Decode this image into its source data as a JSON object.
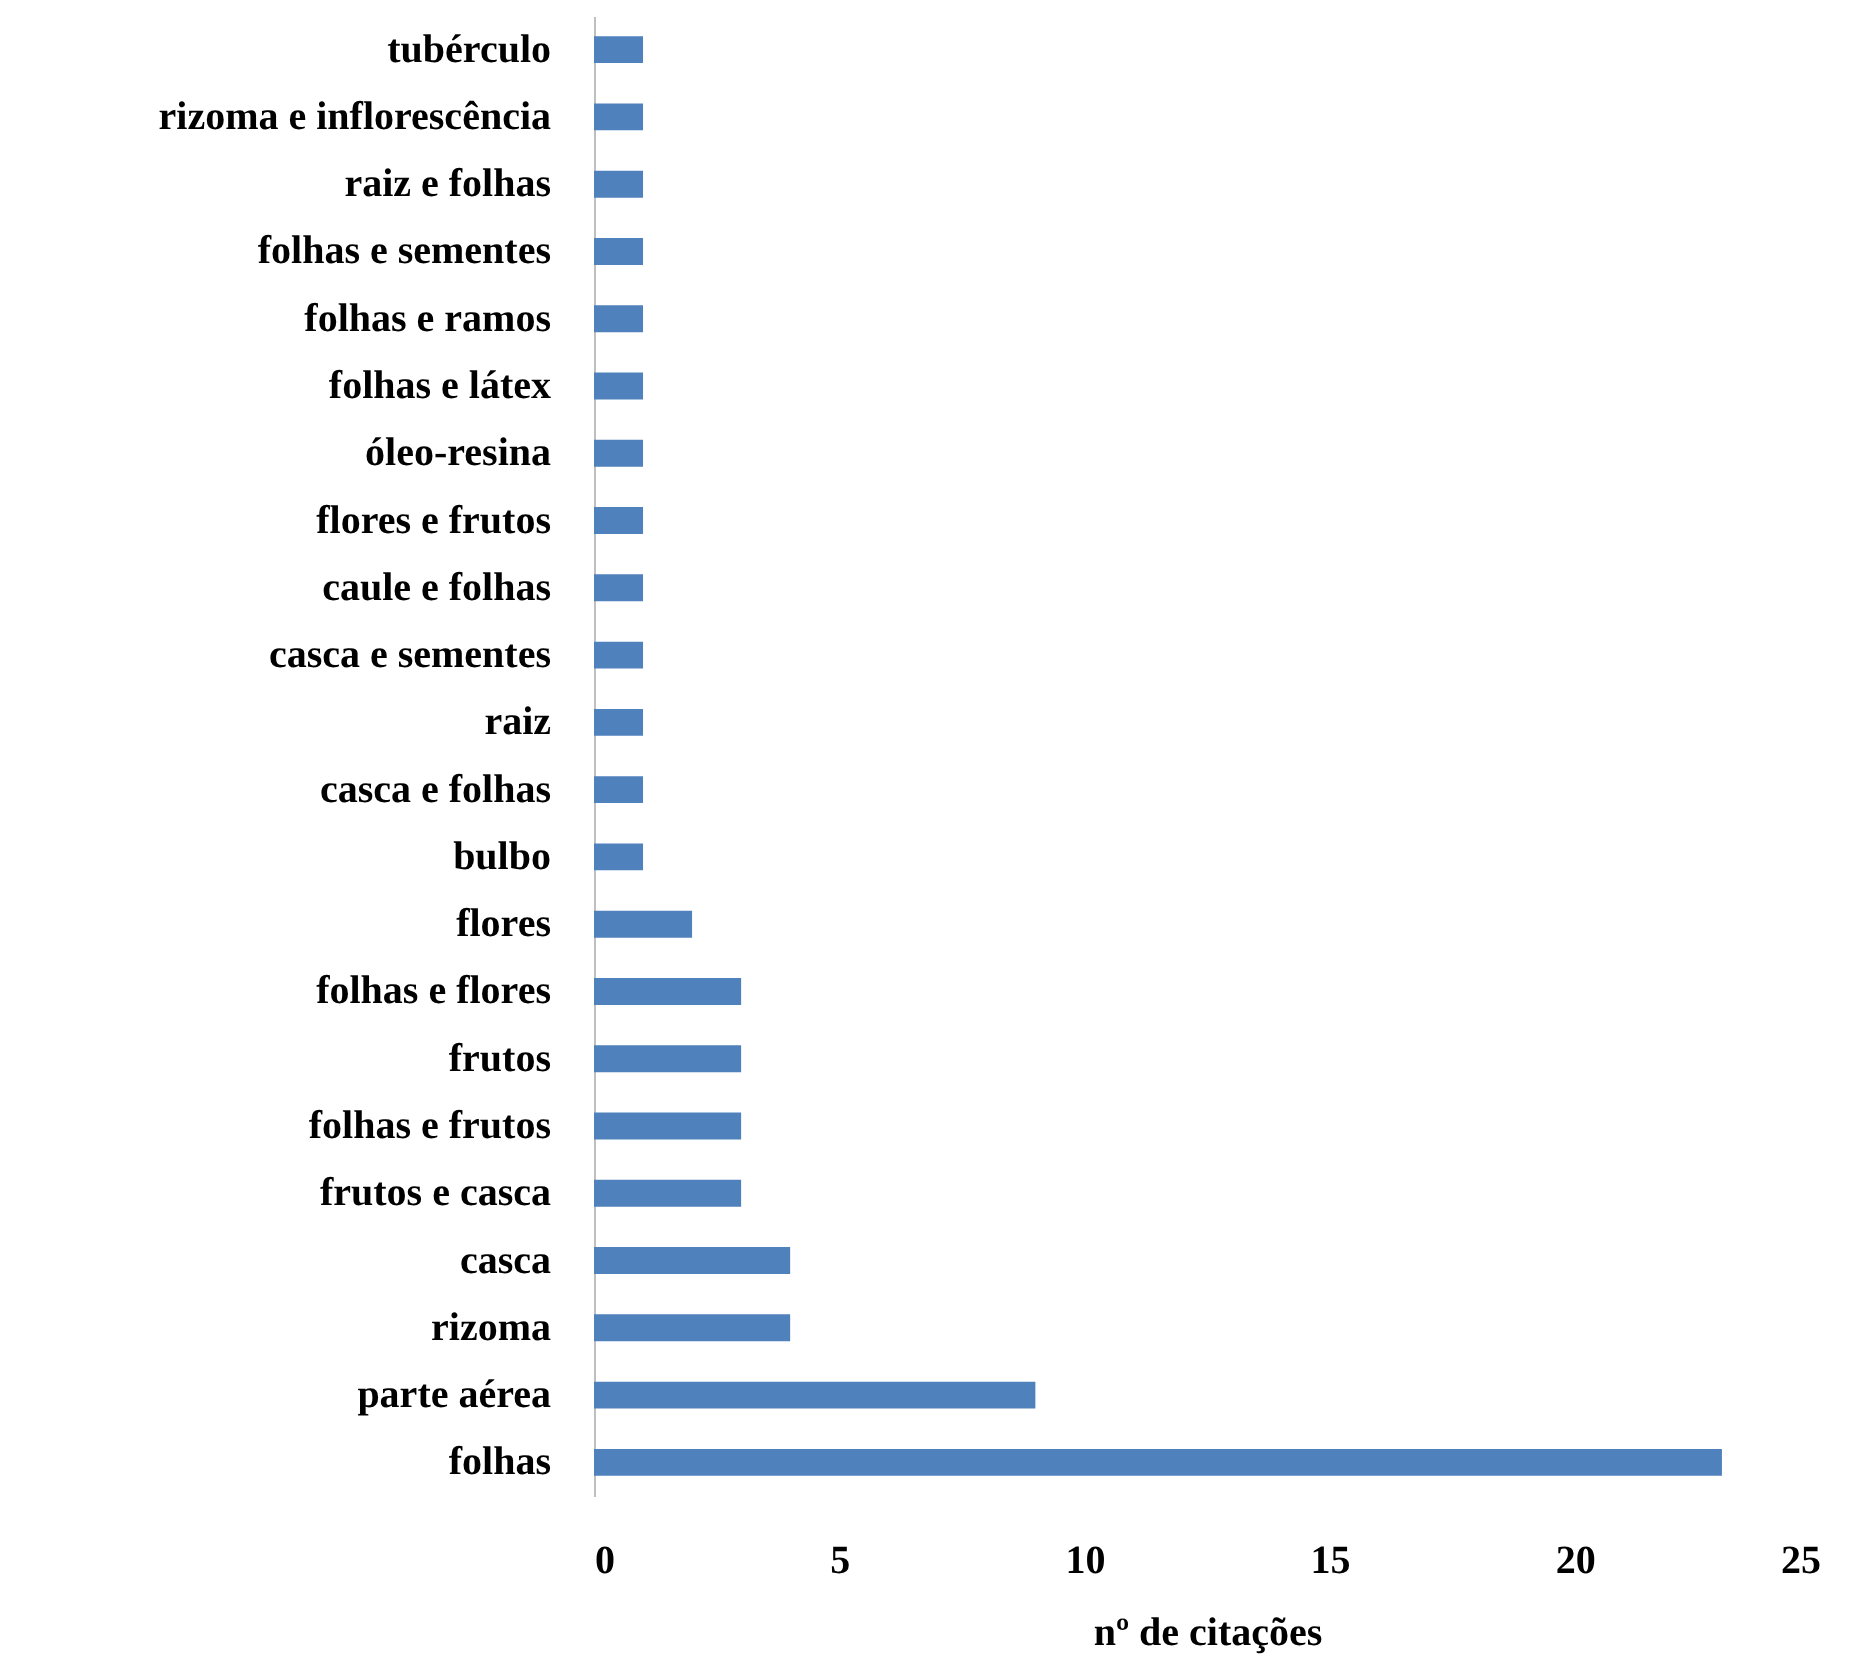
{
  "chart_data": {
    "type": "bar",
    "orientation": "horizontal",
    "xlabel": "nº de citações",
    "categories": [
      "tubérculo",
      "rizoma e inflorescência",
      "raiz e folhas",
      "folhas e sementes",
      "folhas e ramos",
      "folhas e látex",
      "óleo-resina",
      "flores e frutos",
      "caule e folhas",
      "casca e sementes",
      "raiz",
      "casca e folhas",
      "bulbo",
      "flores",
      "folhas e flores",
      "frutos",
      "folhas e frutos",
      "frutos e casca",
      "casca",
      "rizoma",
      "parte aérea",
      "folhas"
    ],
    "values": [
      1,
      1,
      1,
      1,
      1,
      1,
      1,
      1,
      1,
      1,
      1,
      1,
      1,
      2,
      3,
      3,
      3,
      3,
      4,
      4,
      9,
      23
    ],
    "color": "#4f81bd",
    "xlim": [
      0,
      25
    ],
    "xticks": [
      0,
      5,
      10,
      15,
      20,
      25
    ],
    "grid": false
  }
}
